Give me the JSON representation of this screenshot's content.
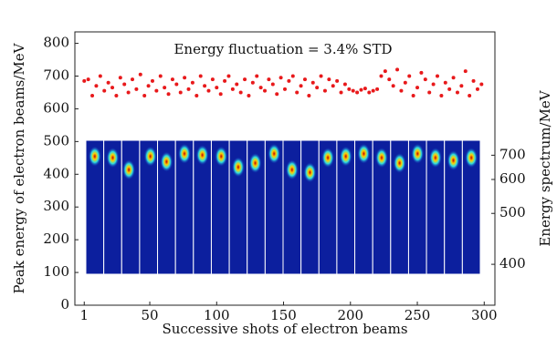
{
  "chart_data": {
    "type": "scatter",
    "annotation": "Energy fluctuation = 3.4%  STD",
    "x_label": "Successive shots of electron beams",
    "y_label": "Peak energy of electron beams/MeV",
    "y2_label": "Energy spectrum/MeV",
    "color": "#e8191b",
    "xlim": [
      -6,
      308
    ],
    "xticks": [
      1,
      50,
      100,
      150,
      200,
      250,
      300
    ],
    "ylim": [
      0,
      835
    ],
    "yticks": [
      0,
      100,
      200,
      300,
      400,
      500,
      600,
      700,
      800
    ],
    "y2scale": "inverse",
    "y2lim": [
      780,
      385
    ],
    "y2ticks": [
      700,
      600,
      500,
      400
    ],
    "x": [
      1,
      4,
      7,
      10,
      13,
      16,
      19,
      22,
      25,
      28,
      31,
      34,
      37,
      40,
      43,
      46,
      49,
      52,
      55,
      58,
      61,
      64,
      67,
      70,
      73,
      76,
      79,
      82,
      85,
      88,
      91,
      94,
      97,
      100,
      103,
      106,
      109,
      112,
      115,
      118,
      121,
      124,
      127,
      130,
      133,
      136,
      139,
      142,
      145,
      148,
      151,
      154,
      157,
      160,
      163,
      166,
      169,
      172,
      175,
      178,
      181,
      184,
      187,
      190,
      193,
      196,
      199,
      202,
      205,
      208,
      211,
      214,
      217,
      220,
      223,
      226,
      229,
      232,
      235,
      238,
      241,
      244,
      247,
      250,
      253,
      256,
      259,
      262,
      265,
      268,
      271,
      274,
      277,
      280,
      283,
      286,
      289,
      292,
      295,
      298
    ],
    "values": [
      685,
      690,
      640,
      670,
      700,
      655,
      680,
      665,
      640,
      695,
      675,
      650,
      690,
      660,
      705,
      640,
      670,
      685,
      655,
      700,
      665,
      645,
      690,
      675,
      650,
      695,
      660,
      680,
      640,
      700,
      670,
      655,
      690,
      665,
      645,
      685,
      700,
      660,
      675,
      650,
      690,
      640,
      680,
      700,
      665,
      655,
      690,
      675,
      645,
      695,
      660,
      685,
      700,
      650,
      670,
      690,
      640,
      680,
      665,
      700,
      655,
      690,
      670,
      685,
      650,
      675,
      660,
      655,
      650,
      658,
      662,
      650,
      655,
      660,
      700,
      715,
      690,
      670,
      720,
      655,
      680,
      700,
      640,
      665,
      710,
      690,
      650,
      675,
      700,
      640,
      680,
      660,
      695,
      650,
      670,
      715,
      640,
      685,
      660,
      675
    ]
  }
}
